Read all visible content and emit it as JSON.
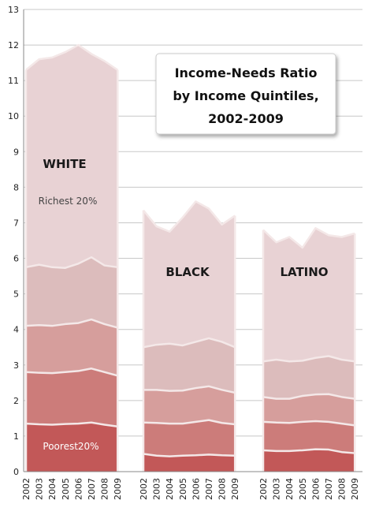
{
  "chart_data": {
    "type": "area",
    "title_lines": [
      "Income-Needs Ratio",
      "by Income Quintiles,",
      "2002-2009"
    ],
    "years": [
      "2002",
      "2003",
      "2004",
      "2005",
      "2006",
      "2007",
      "2008",
      "2009"
    ],
    "ylim": [
      0,
      13
    ],
    "yticks": [
      0,
      1,
      2,
      3,
      4,
      5,
      6,
      7,
      8,
      9,
      10,
      11,
      12,
      13
    ],
    "grid": true,
    "colors": [
      "#c25858",
      "#cc7c7a",
      "#d69e9c",
      "#dcbcbc",
      "#e8d2d4"
    ],
    "boundary_color": "#f4e8e8",
    "groups": [
      {
        "label": "WHITE",
        "series": [
          {
            "values": [
              1.35,
              1.33,
              1.32,
              1.34,
              1.35,
              1.38,
              1.32,
              1.27
            ]
          },
          {
            "values": [
              2.8,
              2.78,
              2.77,
              2.8,
              2.83,
              2.9,
              2.8,
              2.7
            ]
          },
          {
            "values": [
              4.1,
              4.12,
              4.1,
              4.15,
              4.18,
              4.28,
              4.15,
              4.05
            ]
          },
          {
            "values": [
              5.75,
              5.82,
              5.75,
              5.73,
              5.85,
              6.03,
              5.8,
              5.75
            ]
          },
          {
            "values": [
              11.3,
              11.6,
              11.65,
              11.8,
              12.0,
              11.75,
              11.55,
              11.3
            ]
          }
        ]
      },
      {
        "label": "BLACK",
        "series": [
          {
            "values": [
              0.5,
              0.45,
              0.43,
              0.45,
              0.46,
              0.48,
              0.46,
              0.45
            ]
          },
          {
            "values": [
              1.38,
              1.37,
              1.35,
              1.35,
              1.4,
              1.45,
              1.37,
              1.33
            ]
          },
          {
            "values": [
              2.3,
              2.3,
              2.27,
              2.28,
              2.35,
              2.4,
              2.3,
              2.22
            ]
          },
          {
            "values": [
              3.5,
              3.57,
              3.6,
              3.55,
              3.65,
              3.75,
              3.65,
              3.5
            ]
          },
          {
            "values": [
              7.35,
              6.9,
              6.75,
              7.15,
              7.6,
              7.4,
              6.95,
              7.2
            ]
          }
        ]
      },
      {
        "label": "LATINO",
        "series": [
          {
            "values": [
              0.6,
              0.58,
              0.58,
              0.6,
              0.63,
              0.62,
              0.55,
              0.52
            ]
          },
          {
            "values": [
              1.4,
              1.38,
              1.37,
              1.4,
              1.42,
              1.4,
              1.35,
              1.3
            ]
          },
          {
            "values": [
              2.1,
              2.05,
              2.05,
              2.13,
              2.17,
              2.18,
              2.1,
              2.05
            ]
          },
          {
            "values": [
              3.1,
              3.15,
              3.1,
              3.12,
              3.2,
              3.25,
              3.15,
              3.1
            ]
          },
          {
            "values": [
              6.8,
              6.45,
              6.6,
              6.3,
              6.85,
              6.65,
              6.6,
              6.7
            ]
          }
        ]
      }
    ],
    "annotations": {
      "richest": "Richest 20%",
      "poorest": "Poorest20%"
    }
  }
}
